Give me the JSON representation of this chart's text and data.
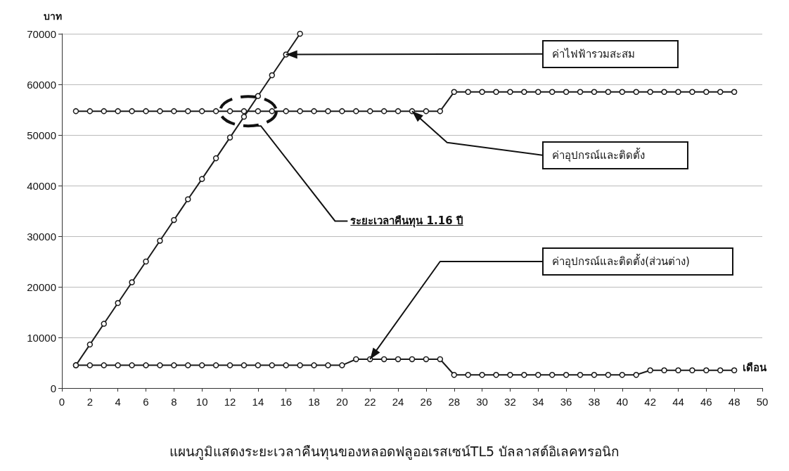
{
  "chart_data": {
    "type": "line",
    "title": "แผนภูมิแสดงระยะเวลาคืนทุนของหลอดฟลูออเรสเซน์TL5 บัลลาสต์อิเลคทรอนิก",
    "xlabel": "เดือน",
    "ylabel": "บาท",
    "xlim": [
      0,
      50
    ],
    "xticks": [
      0,
      2,
      4,
      6,
      8,
      10,
      12,
      14,
      16,
      18,
      20,
      22,
      24,
      26,
      28,
      30,
      32,
      34,
      36,
      38,
      40,
      42,
      44,
      46,
      48,
      50
    ],
    "ylim": [
      0,
      70000
    ],
    "yticks": [
      0,
      10000,
      20000,
      30000,
      40000,
      50000,
      60000,
      70000
    ],
    "grid": "y",
    "marker": "circle",
    "line_style": "solid",
    "series": [
      {
        "color": "#1a1a1a",
        "x": [
          1,
          2,
          3,
          4,
          5,
          6,
          7,
          8,
          9,
          10,
          11,
          12,
          13,
          14,
          15,
          16,
          17
        ],
        "values": [
          4500,
          8600,
          12700,
          16800,
          20900,
          25000,
          29100,
          33200,
          37300,
          41300,
          45400,
          49500,
          53600,
          57700,
          61800,
          65900,
          70000
        ]
      },
      {
        "color": "#1a1a1a",
        "x": [
          1,
          2,
          3,
          4,
          5,
          6,
          7,
          8,
          9,
          10,
          11,
          12,
          13,
          14,
          15,
          16,
          17,
          18,
          19,
          20,
          21,
          22,
          23,
          24,
          25,
          26,
          27,
          28,
          29,
          30,
          31,
          32,
          33,
          34,
          35,
          36,
          37,
          38,
          39,
          40,
          41,
          42,
          43,
          44,
          45,
          46,
          47,
          48
        ],
        "values": [
          54700,
          54700,
          54700,
          54700,
          54700,
          54700,
          54700,
          54700,
          54700,
          54700,
          54700,
          54700,
          54700,
          54700,
          54700,
          54700,
          54700,
          54700,
          54700,
          54700,
          54700,
          54700,
          54700,
          54700,
          54700,
          54700,
          54700,
          58500,
          58500,
          58500,
          58500,
          58500,
          58500,
          58500,
          58500,
          58500,
          58500,
          58500,
          58500,
          58500,
          58500,
          58500,
          58500,
          58500,
          58500,
          58500,
          58500,
          58500
        ]
      },
      {
        "color": "#1a1a1a",
        "x": [
          1,
          2,
          3,
          4,
          5,
          6,
          7,
          8,
          9,
          10,
          11,
          12,
          13,
          14,
          15,
          16,
          17,
          18,
          19,
          20,
          21,
          22,
          23,
          24,
          25,
          26,
          27,
          28,
          29,
          30,
          31,
          32,
          33,
          34,
          35,
          36,
          37,
          38,
          39,
          40,
          41,
          42,
          43,
          44,
          45,
          46,
          47,
          48
        ],
        "values": [
          4500,
          4500,
          4500,
          4500,
          4500,
          4500,
          4500,
          4500,
          4500,
          4500,
          4500,
          4500,
          4500,
          4500,
          4500,
          4500,
          4500,
          4500,
          4500,
          4500,
          5700,
          5700,
          5700,
          5700,
          5700,
          5700,
          5700,
          2600,
          2600,
          2600,
          2600,
          2600,
          2600,
          2600,
          2600,
          2600,
          2600,
          2600,
          2600,
          2600,
          2600,
          3500,
          3500,
          3500,
          3500,
          3500,
          3500,
          3500
        ]
      }
    ],
    "annotations": [
      {
        "text": "ค่าไฟฟ้ารวมสะสม",
        "x": 16,
        "y": 65900
      },
      {
        "text": "ค่าอุปกรณ์และติดตั้ง",
        "x": 25,
        "y": 54700
      },
      "ระยะเวลาคืนทุน 1.16 ปี",
      {
        "text": "ค่าอุปกรณ์และติดตั้ง(ส่วนต่าง)",
        "x": 22,
        "y": 5700
      }
    ]
  }
}
